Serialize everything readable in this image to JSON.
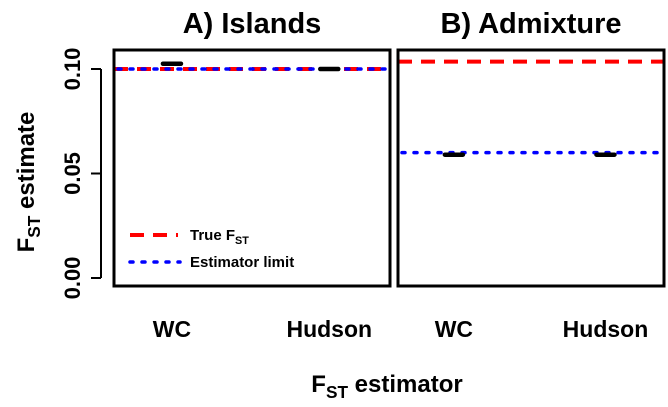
{
  "figure": {
    "ylabel": {
      "main": "F",
      "sub": "ST",
      "rest": " estimate"
    },
    "xlabel": {
      "main": "F",
      "sub": "ST",
      "rest": " estimator"
    },
    "yticks": [
      "0.00",
      "0.05",
      "0.10"
    ],
    "legend": {
      "true_fst": {
        "main": "True F",
        "sub": "ST"
      },
      "estimator_limit": "Estimator limit"
    }
  },
  "colors": {
    "true_fst": "#ff0000",
    "estimator_limit": "#0000ff",
    "estimate": "#000000"
  },
  "chart_data": [
    {
      "type": "boxplot",
      "title": "A) Islands",
      "categories": [
        "WC",
        "Hudson"
      ],
      "estimates": [
        0.1025,
        0.1
      ],
      "true_fst": 0.1,
      "estimator_limit": 0.1,
      "ylim": [
        0,
        0.1
      ],
      "yticks": [
        0,
        0.05,
        0.1
      ],
      "legend_position": "bottom-left"
    },
    {
      "type": "boxplot",
      "title": "B) Admixture",
      "categories": [
        "WC",
        "Hudson"
      ],
      "estimates": [
        0.059,
        0.059
      ],
      "true_fst": 0.1035,
      "estimator_limit": 0.06,
      "ylim": [
        0,
        0.1
      ],
      "yticks": [
        0,
        0.05,
        0.1
      ]
    }
  ]
}
